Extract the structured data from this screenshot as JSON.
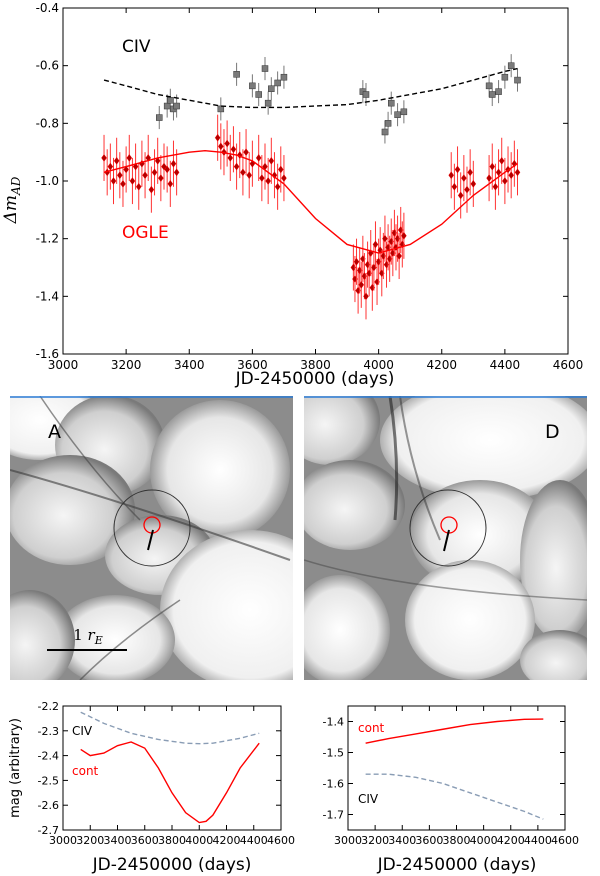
{
  "chart_data": [
    {
      "type": "scatter",
      "xlabel": "JD-2450000 (days)",
      "ylabel": "Δm_AD",
      "xlim": [
        3000,
        4600
      ],
      "ylim": [
        -1.6,
        -0.4
      ],
      "xticks": [
        "3000",
        "3200",
        "3400",
        "3600",
        "3800",
        "4000",
        "4200",
        "4400",
        "4600"
      ],
      "yticks": [
        "-0.4",
        "-0.6",
        "-0.8",
        "-1.0",
        "-1.2",
        "-1.4",
        "-1.6"
      ],
      "annotations": [
        {
          "text": "CIV",
          "color": "#000000"
        },
        {
          "text": "OGLE",
          "color": "#ff0000"
        }
      ],
      "series": [
        {
          "name": "CIV",
          "color": "#777777",
          "marker": "square",
          "x": [
            3305,
            3330,
            3340,
            3350,
            3360,
            3500,
            3550,
            3600,
            3620,
            3640,
            3650,
            3660,
            3680,
            3700,
            3950,
            3960,
            4020,
            4030,
            4040,
            4060,
            4080,
            4350,
            4360,
            4380,
            4400,
            4420,
            4440
          ],
          "y": [
            -0.78,
            -0.74,
            -0.72,
            -0.75,
            -0.74,
            -0.75,
            -0.63,
            -0.67,
            -0.7,
            -0.61,
            -0.73,
            -0.68,
            -0.66,
            -0.64,
            -0.69,
            -0.7,
            -0.83,
            -0.8,
            -0.73,
            -0.77,
            -0.76,
            -0.67,
            -0.7,
            -0.69,
            -0.64,
            -0.6,
            -0.65
          ],
          "err": 0.04
        },
        {
          "name": "OGLE",
          "color": "#ff0000",
          "marker": "diamond",
          "x": [
            3130,
            3140,
            3150,
            3160,
            3170,
            3180,
            3190,
            3200,
            3210,
            3220,
            3230,
            3240,
            3250,
            3260,
            3270,
            3280,
            3290,
            3300,
            3310,
            3320,
            3330,
            3340,
            3350,
            3360,
            3490,
            3500,
            3510,
            3520,
            3530,
            3540,
            3550,
            3560,
            3570,
            3580,
            3590,
            3600,
            3620,
            3630,
            3640,
            3650,
            3660,
            3670,
            3680,
            3690,
            3700,
            3920,
            3925,
            3930,
            3935,
            3940,
            3945,
            3950,
            3955,
            3960,
            3965,
            3970,
            3975,
            3980,
            3985,
            3990,
            3995,
            4000,
            4005,
            4010,
            4015,
            4020,
            4025,
            4030,
            4035,
            4040,
            4045,
            4050,
            4055,
            4060,
            4065,
            4070,
            4075,
            4080,
            4230,
            4240,
            4250,
            4260,
            4270,
            4280,
            4290,
            4300,
            4350,
            4360,
            4370,
            4380,
            4390,
            4400,
            4410,
            4420,
            4430,
            4440
          ],
          "y": [
            -0.92,
            -0.97,
            -0.95,
            -1.0,
            -0.93,
            -0.98,
            -1.01,
            -0.96,
            -0.92,
            -1.0,
            -0.95,
            -1.02,
            -0.94,
            -0.98,
            -0.92,
            -1.03,
            -0.97,
            -0.93,
            -0.99,
            -0.95,
            -0.96,
            -1.01,
            -0.94,
            -0.97,
            -0.85,
            -0.88,
            -0.9,
            -0.87,
            -0.92,
            -0.89,
            -0.95,
            -0.91,
            -0.97,
            -0.9,
            -0.98,
            -0.94,
            -0.92,
            -0.99,
            -0.95,
            -1.0,
            -0.93,
            -0.98,
            -1.02,
            -0.96,
            -0.99,
            -1.3,
            -1.34,
            -1.28,
            -1.38,
            -1.31,
            -1.36,
            -1.27,
            -1.33,
            -1.4,
            -1.29,
            -1.32,
            -1.25,
            -1.37,
            -1.3,
            -1.22,
            -1.35,
            -1.28,
            -1.24,
            -1.32,
            -1.26,
            -1.2,
            -1.29,
            -1.23,
            -1.27,
            -1.21,
            -1.25,
            -1.18,
            -1.23,
            -1.2,
            -1.26,
            -1.17,
            -1.22,
            -1.19,
            -0.98,
            -1.02,
            -0.96,
            -1.05,
            -0.99,
            -1.03,
            -0.97,
            -1.01,
            -0.99,
            -0.95,
            -1.02,
            -0.97,
            -0.93,
            -1.0,
            -0.96,
            -0.98,
            -0.94,
            -0.97
          ],
          "err": 0.08
        },
        {
          "name": "CIV model",
          "style": "dashed",
          "color": "#000000",
          "x": [
            3130,
            3200,
            3300,
            3400,
            3500,
            3600,
            3700,
            3800,
            3900,
            4000,
            4100,
            4200,
            4300,
            4400,
            4440
          ],
          "y": [
            -0.65,
            -0.67,
            -0.7,
            -0.72,
            -0.74,
            -0.745,
            -0.745,
            -0.74,
            -0.735,
            -0.72,
            -0.7,
            -0.68,
            -0.65,
            -0.62,
            -0.61
          ]
        },
        {
          "name": "OGLE model",
          "style": "solid",
          "color": "#ff0000",
          "x": [
            3130,
            3200,
            3300,
            3400,
            3450,
            3500,
            3550,
            3600,
            3700,
            3800,
            3900,
            4000,
            4100,
            4200,
            4300,
            4400,
            4440
          ],
          "y": [
            -0.97,
            -0.95,
            -0.92,
            -0.9,
            -0.895,
            -0.9,
            -0.91,
            -0.93,
            -1.01,
            -1.13,
            -1.22,
            -1.25,
            -1.22,
            -1.15,
            -1.05,
            -0.97,
            -0.94
          ]
        }
      ]
    },
    {
      "type": "image",
      "panels": [
        {
          "label": "A",
          "scale_label": "1 r_E"
        },
        {
          "label": "D"
        }
      ]
    },
    {
      "type": "line",
      "xlabel": "JD-2450000 (days)",
      "ylabel": "mag (arbitrary)",
      "xlim": [
        3000,
        4600
      ],
      "ylim": [
        -2.7,
        -2.2
      ],
      "xticks": [
        "3000",
        "3200",
        "3400",
        "3600",
        "3800",
        "4000",
        "4200",
        "4400",
        "4600"
      ],
      "yticks": [
        "-2.2",
        "-2.3",
        "-2.4",
        "-2.5",
        "-2.6",
        "-2.7"
      ],
      "series": [
        {
          "name": "CIV",
          "style": "dashed",
          "color": "#8a9db5",
          "x": [
            3130,
            3300,
            3500,
            3700,
            3900,
            4000,
            4100,
            4200,
            4300,
            4440
          ],
          "y": [
            -2.225,
            -2.27,
            -2.31,
            -2.335,
            -2.35,
            -2.352,
            -2.35,
            -2.34,
            -2.33,
            -2.31
          ]
        },
        {
          "name": "cont",
          "style": "solid",
          "color": "#ff0000",
          "x": [
            3130,
            3200,
            3300,
            3400,
            3500,
            3600,
            3700,
            3800,
            3900,
            4000,
            4050,
            4100,
            4200,
            4300,
            4440
          ],
          "y": [
            -2.375,
            -2.4,
            -2.39,
            -2.36,
            -2.345,
            -2.37,
            -2.45,
            -2.55,
            -2.63,
            -2.67,
            -2.665,
            -2.64,
            -2.55,
            -2.45,
            -2.35
          ]
        }
      ]
    },
    {
      "type": "line",
      "xlabel": "JD-2450000 (days)",
      "ylabel": "",
      "xlim": [
        3000,
        4600
      ],
      "ylim": [
        -1.75,
        -1.35
      ],
      "xticks": [
        "3000",
        "3200",
        "3400",
        "3600",
        "3800",
        "4000",
        "4200",
        "4400",
        "4600"
      ],
      "yticks": [
        "-1.4",
        "-1.5",
        "-1.6",
        "-1.7"
      ],
      "series": [
        {
          "name": "cont",
          "style": "solid",
          "color": "#ff0000",
          "x": [
            3130,
            3300,
            3500,
            3700,
            3900,
            4100,
            4300,
            4440
          ],
          "y": [
            -1.47,
            -1.455,
            -1.44,
            -1.425,
            -1.41,
            -1.4,
            -1.393,
            -1.392
          ]
        },
        {
          "name": "CIV",
          "style": "dashed",
          "color": "#8a9db5",
          "x": [
            3130,
            3300,
            3500,
            3700,
            3900,
            4100,
            4300,
            4440
          ],
          "y": [
            -1.57,
            -1.57,
            -1.58,
            -1.6,
            -1.63,
            -1.66,
            -1.69,
            -1.715
          ]
        }
      ]
    }
  ]
}
